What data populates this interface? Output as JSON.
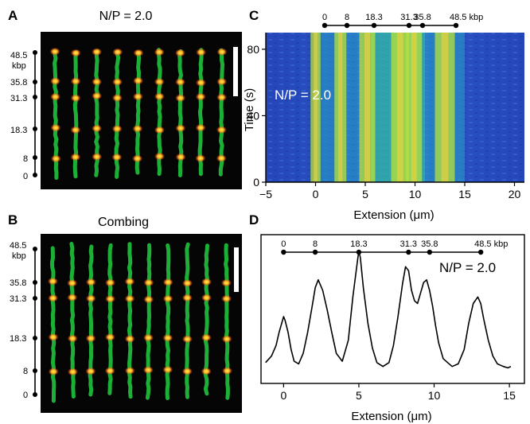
{
  "panels": {
    "A": {
      "letter": "A",
      "title": "N/P = 2.0",
      "scale_labels": [
        "48.5",
        "kbp",
        "35.8",
        "31.3",
        "18.3",
        "8",
        "0"
      ],
      "molecule_count": 9
    },
    "B": {
      "letter": "B",
      "title": "Combing",
      "scale_labels": [
        "48.5",
        "kbp",
        "35.8",
        "31.3",
        "18.3",
        "8",
        "0"
      ],
      "molecule_count": 10
    },
    "C": {
      "letter": "C",
      "overlay": "N/P = 2.0",
      "ylabel": "Time (s)",
      "xlabel": "Extension (μm)",
      "marker_labels": [
        "0",
        "8",
        "18.3",
        "31.3",
        "35.8",
        "48.5 kbp"
      ]
    },
    "D": {
      "letter": "D",
      "overlay": "N/P = 2.0",
      "xlabel": "Extension (μm)",
      "marker_labels": [
        "0",
        "8",
        "18.3",
        "31.3",
        "35.8",
        "48.5 kbp"
      ]
    }
  },
  "colors": {
    "dna": "#1fbf3c",
    "marker": "#ff4a1c",
    "marker_core": "#ffe34a",
    "kymo_bg": "#2a4fc2"
  },
  "chart_data": [
    {
      "type": "heatmap",
      "panel": "C",
      "xlabel": "Extension (μm)",
      "ylabel": "Time (s)",
      "xlim": [
        -5,
        21
      ],
      "ylim": [
        0,
        90
      ],
      "x_ticks": [
        -5,
        0,
        5,
        10,
        15,
        20
      ],
      "y_ticks": [
        0,
        40,
        80
      ],
      "marker_kbp": [
        0,
        8,
        18.3,
        31.3,
        35.8,
        48.5
      ],
      "bright_band_centers_um": [
        0,
        2.5,
        5.2,
        8.5,
        9.9,
        13.0
      ]
    },
    {
      "type": "line",
      "panel": "D",
      "xlabel": "Extension (μm)",
      "xlim": [
        -1.5,
        16
      ],
      "x_ticks": [
        0,
        5,
        10,
        15
      ],
      "marker_kbp": [
        0,
        8,
        18.3,
        31.3,
        35.8,
        48.5
      ],
      "x": [
        -1.2,
        -0.8,
        -0.5,
        -0.3,
        -0.1,
        0,
        0.1,
        0.3,
        0.5,
        0.7,
        1.0,
        1.3,
        1.6,
        1.9,
        2.1,
        2.3,
        2.6,
        2.9,
        3.2,
        3.5,
        3.9,
        4.3,
        4.6,
        4.9,
        5.0,
        5.1,
        5.3,
        5.6,
        5.9,
        6.2,
        6.6,
        7.0,
        7.3,
        7.6,
        7.9,
        8.1,
        8.3,
        8.5,
        8.7,
        8.9,
        9.1,
        9.3,
        9.5,
        9.7,
        9.9,
        10.1,
        10.3,
        10.6,
        10.9,
        11.2,
        11.6,
        12.0,
        12.3,
        12.6,
        12.9,
        13.1,
        13.3,
        13.6,
        13.9,
        14.2,
        14.6,
        14.9,
        15.1
      ],
      "y": [
        0.05,
        0.1,
        0.18,
        0.28,
        0.36,
        0.4,
        0.37,
        0.28,
        0.15,
        0.06,
        0.04,
        0.12,
        0.28,
        0.48,
        0.62,
        0.68,
        0.6,
        0.45,
        0.28,
        0.12,
        0.06,
        0.22,
        0.55,
        0.82,
        0.9,
        0.85,
        0.62,
        0.35,
        0.16,
        0.05,
        0.02,
        0.05,
        0.18,
        0.4,
        0.65,
        0.78,
        0.75,
        0.6,
        0.52,
        0.5,
        0.58,
        0.66,
        0.68,
        0.6,
        0.48,
        0.33,
        0.2,
        0.08,
        0.05,
        0.02,
        0.04,
        0.15,
        0.35,
        0.5,
        0.55,
        0.5,
        0.38,
        0.22,
        0.1,
        0.04,
        0.02,
        0.01,
        0.02
      ]
    }
  ]
}
